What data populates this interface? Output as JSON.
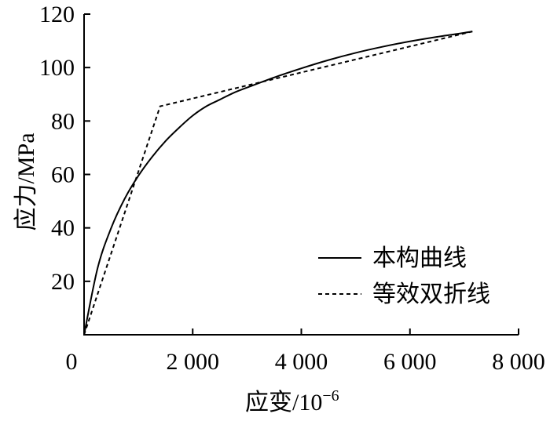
{
  "chart_data": {
    "type": "line",
    "title": "",
    "xlabel": "应变/10",
    "xlabel_sup": "−6",
    "ylabel": "应力/MPa",
    "xlim": [
      0,
      8000
    ],
    "ylim": [
      0,
      120
    ],
    "x_ticks": [
      {
        "value": 0,
        "label": "0"
      },
      {
        "value": 2000,
        "label": "2 000"
      },
      {
        "value": 4000,
        "label": "4 000"
      },
      {
        "value": 6000,
        "label": "6 000"
      },
      {
        "value": 8000,
        "label": "8 000"
      }
    ],
    "y_ticks": [
      {
        "value": 20,
        "label": "20"
      },
      {
        "value": 40,
        "label": "40"
      },
      {
        "value": 60,
        "label": "60"
      },
      {
        "value": 80,
        "label": "80"
      },
      {
        "value": 100,
        "label": "100"
      },
      {
        "value": 120,
        "label": "120"
      }
    ],
    "grid": false,
    "legend_position": "bottom-right",
    "series": [
      {
        "name": "本构曲线",
        "style": "solid",
        "color": "#000000",
        "x": [
          0,
          250,
          500,
          750,
          1000,
          1250,
          1500,
          1750,
          2000,
          2250,
          2500,
          2750,
          3000,
          3500,
          4000,
          4500,
          5000,
          5500,
          6000,
          6500,
          7000,
          7150
        ],
        "y": [
          0,
          25,
          40,
          51,
          59.5,
          66.5,
          72.5,
          77.5,
          82,
          85.5,
          88,
          90.5,
          92.5,
          96.3,
          99.7,
          102.8,
          105.5,
          107.8,
          109.8,
          111.5,
          113,
          113.5
        ]
      },
      {
        "name": "等效双折线",
        "style": "dashed",
        "color": "#000000",
        "x": [
          0,
          1400,
          7150
        ],
        "y": [
          0,
          85.5,
          113.5
        ]
      }
    ]
  }
}
